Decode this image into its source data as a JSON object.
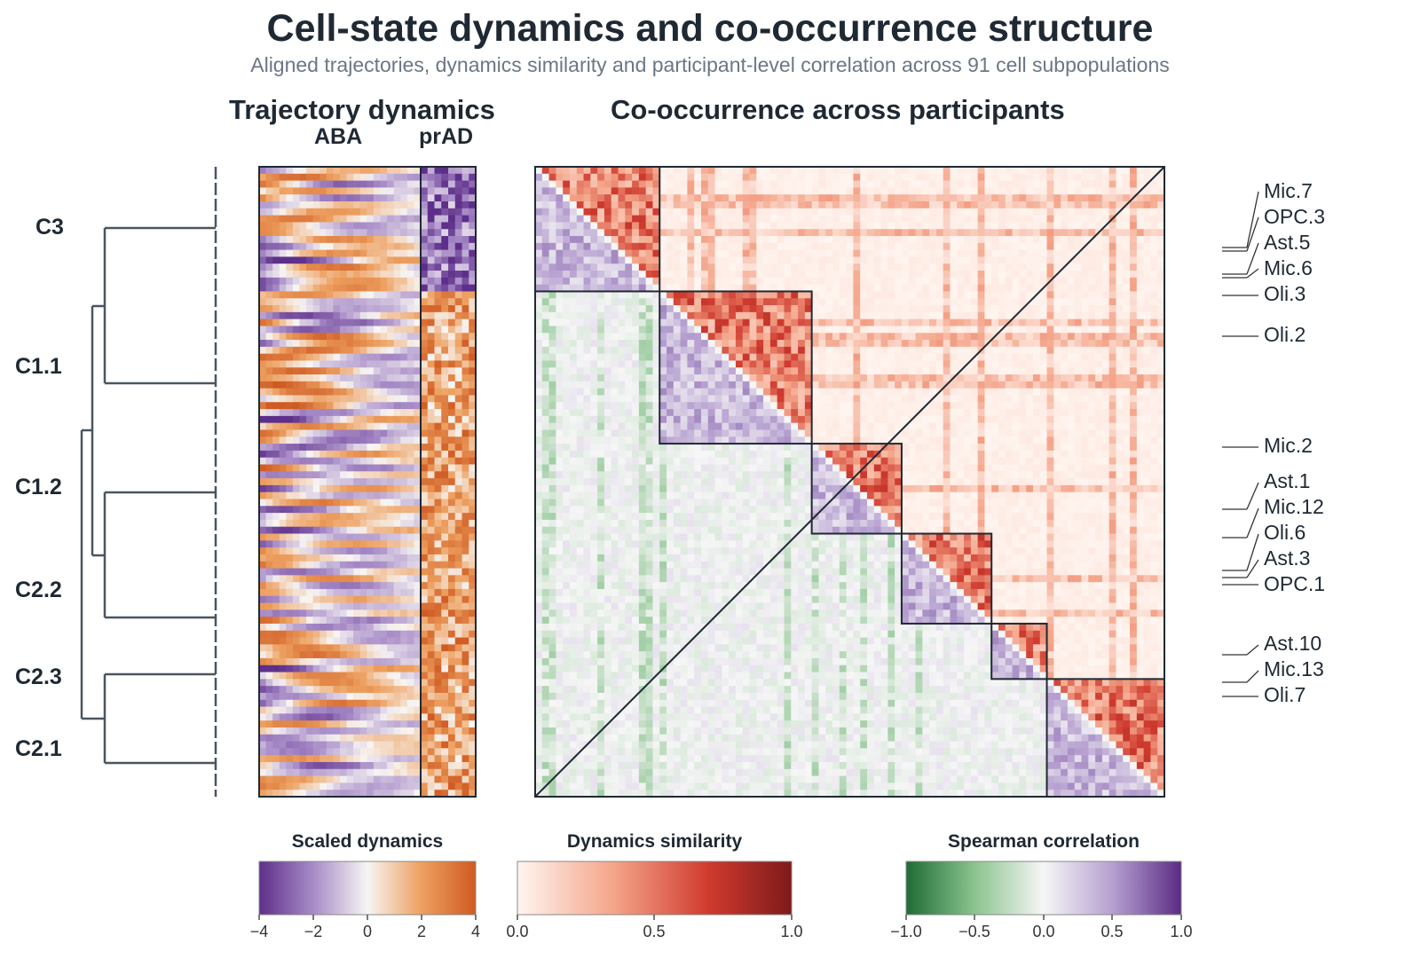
{
  "header": {
    "title": "Cell-state dynamics and co-occurrence structure",
    "subtitle": "Aligned trajectories, dynamics similarity and participant-level correlation across 91 cell subpopulations"
  },
  "colors": {
    "text": "#1f2933",
    "subtitle": "#6b7785",
    "dendrogram": "#4a5560",
    "block_outline": "#1f2933"
  },
  "chart_data": [
    {
      "type": "heatmap",
      "name": "trajectory-dynamics",
      "title": "Trajectory dynamics",
      "columns": [
        "ABA",
        "prAD"
      ],
      "n_rows": 91,
      "cluster_order": [
        "C3",
        "C1.1",
        "C1.2",
        "C2.2",
        "C2.3",
        "C2.1"
      ],
      "cluster_rows": [
        18,
        22,
        13,
        17,
        9,
        12
      ],
      "dendrogram": true,
      "colorbar": {
        "title": "Scaled dynamics",
        "range": [
          -4,
          4
        ],
        "ticks": [
          "−4",
          "−2",
          "0",
          "2",
          "4"
        ],
        "colormap": "purple-white-orange"
      }
    },
    {
      "type": "heatmap",
      "name": "co-occurrence",
      "title": "Co-occurrence across participants",
      "n": 91,
      "upper_triangle": "Dynamics similarity",
      "lower_triangle": "Spearman correlation",
      "block_sizes": [
        18,
        22,
        13,
        13,
        8,
        17
      ],
      "row_labels": [
        "Mic.7",
        "OPC.3",
        "Ast.5",
        "Mic.6",
        "Oli.3",
        "Oli.2",
        "Mic.2",
        "Ast.1",
        "Mic.12",
        "Oli.6",
        "Ast.3",
        "OPC.1",
        "Ast.10",
        "Mic.13",
        "Oli.7"
      ],
      "colorbars": [
        {
          "title": "Dynamics similarity",
          "range": [
            0,
            1
          ],
          "ticks": [
            "0.0",
            "0.5",
            "1.0"
          ],
          "colormap": "white-red"
        },
        {
          "title": "Spearman correlation",
          "range": [
            -1,
            1
          ],
          "ticks": [
            "−1.0",
            "−0.5",
            "0.0",
            "0.5",
            "1.0"
          ],
          "colormap": "green-white-purple"
        }
      ]
    }
  ]
}
